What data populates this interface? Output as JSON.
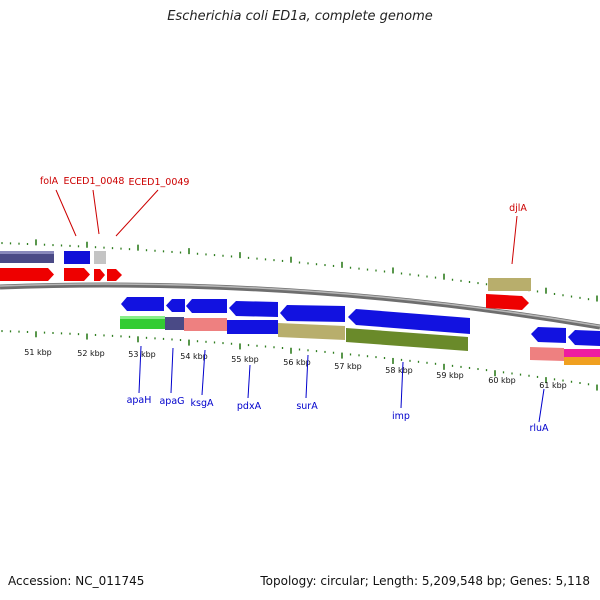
{
  "title": "Escherichia coli ED1a, complete genome",
  "footer": {
    "accession": "Accession: NC_011745",
    "topology": "Topology: circular; Length: 5,209,548 bp; Genes: 5,118"
  },
  "colors": {
    "background": "#ffffff",
    "backbone": "#888888",
    "tick": "#2f7d1f",
    "top_label": "#cc0000",
    "bottom_label": "#0000cc",
    "label_line_top": "#cc0000",
    "label_line_bottom": "#0000cc"
  },
  "axis_labels": [
    "51 kbp",
    "52 kbp",
    "53 kbp",
    "54 kbp",
    "55 kbp",
    "56 kbp",
    "57 kbp",
    "58 kbp",
    "59 kbp",
    "60 kbp",
    "61 kbp"
  ],
  "gene_labels_top": [
    "folA",
    "ECED1_0048",
    "ECED1_0049",
    "djlA"
  ],
  "gene_labels_bottom": [
    "apaH",
    "apaG",
    "ksgA",
    "pdxA",
    "surA",
    "imp",
    "rluA"
  ],
  "forward_genes": [
    {
      "id": "folA",
      "color": "#ee0000"
    },
    {
      "id": "ECED1_0048",
      "color": "#ee0000"
    },
    {
      "id": "ECED1_0049",
      "color": "#ee0000"
    },
    {
      "id": "djlA",
      "color": "#ee0000"
    }
  ],
  "reverse_genes": [
    "apaH",
    "apaG",
    "ksgA",
    "pdxA",
    "surA",
    "imp",
    "rluA"
  ]
}
